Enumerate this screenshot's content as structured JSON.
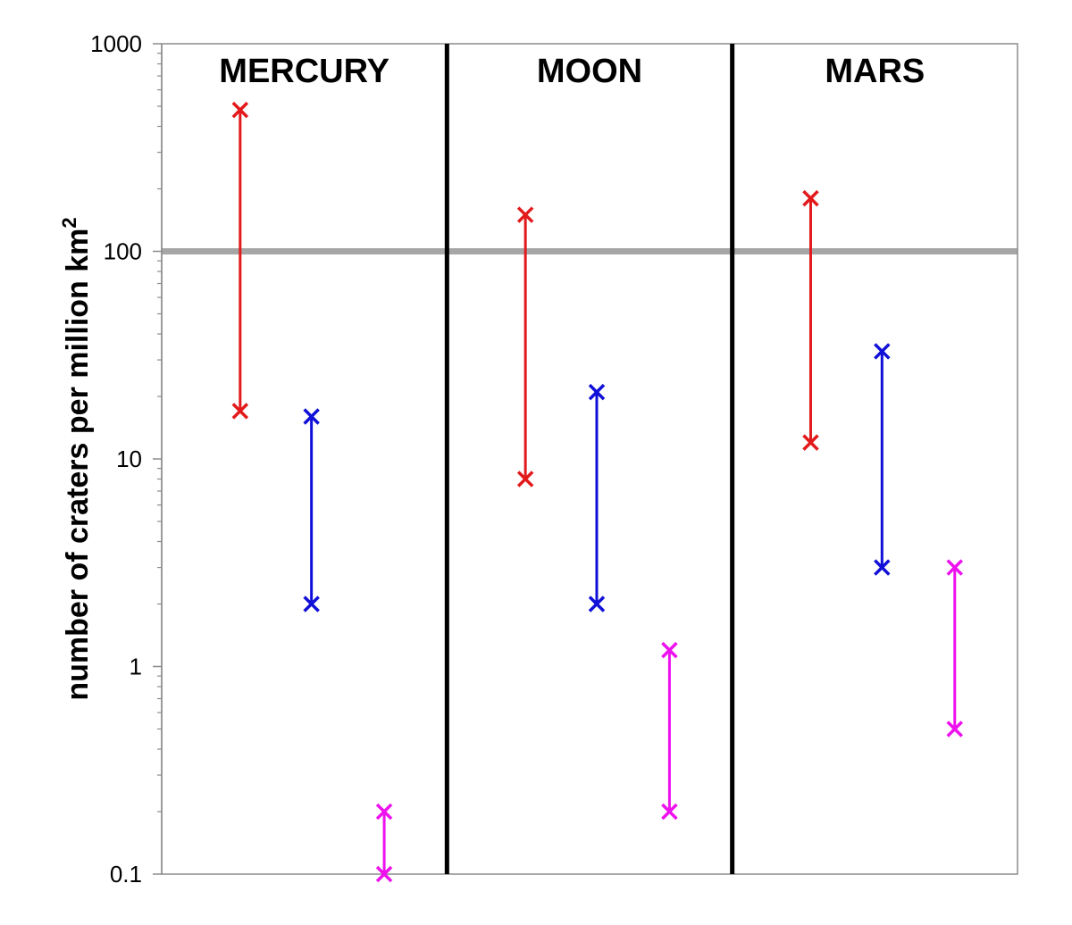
{
  "chart_data": {
    "type": "range",
    "title": "",
    "ylabel": "number of craters per million km",
    "ylabel_superscript": "2",
    "yscale": "log",
    "ylim": [
      0.1,
      1000
    ],
    "y_ticks": [
      {
        "value": 1000,
        "label": "1000"
      },
      {
        "value": 100,
        "label": "100"
      },
      {
        "value": 10,
        "label": "10"
      },
      {
        "value": 1,
        "label": "1"
      },
      {
        "value": 0.1,
        "label": "0.1"
      }
    ],
    "reference_line": {
      "value": 100,
      "color": "#a6a6a6"
    },
    "colors": {
      "red": "#e31a1c",
      "blue": "#1010d8",
      "magenta": "#ee10ee",
      "divider": "#000000",
      "frame": "#8c8c8c"
    },
    "panels": [
      {
        "name": "MERCURY",
        "series": [
          {
            "color": "red",
            "low": 17,
            "high": 480
          },
          {
            "color": "blue",
            "low": 2,
            "high": 16
          },
          {
            "color": "magenta",
            "low": 0.1,
            "high": 0.2
          }
        ]
      },
      {
        "name": "MOON",
        "series": [
          {
            "color": "red",
            "low": 8,
            "high": 150
          },
          {
            "color": "blue",
            "low": 2,
            "high": 21
          },
          {
            "color": "magenta",
            "low": 0.2,
            "high": 1.2
          }
        ]
      },
      {
        "name": "MARS",
        "series": [
          {
            "color": "red",
            "low": 12,
            "high": 180
          },
          {
            "color": "blue",
            "low": 3,
            "high": 33
          },
          {
            "color": "magenta",
            "low": 0.5,
            "high": 3
          }
        ]
      }
    ]
  }
}
